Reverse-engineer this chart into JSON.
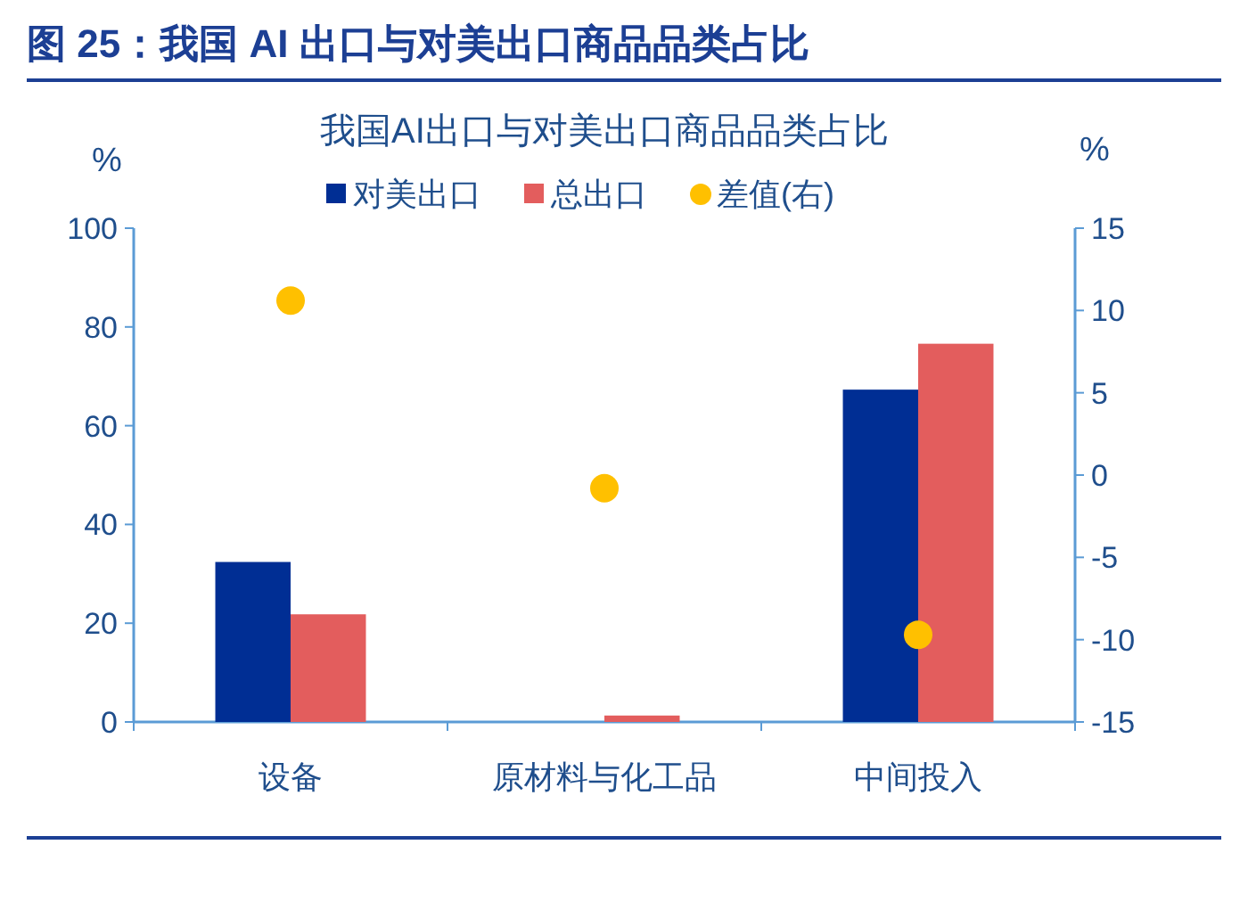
{
  "chart_data": {
    "type": "bar",
    "title": "图 25：我国 AI 出口与对美出口商品品类占比",
    "subtitle": "我国AI出口与对美出口商品品类占比",
    "ylabel": "%",
    "y2label": "%",
    "categories": [
      "设备",
      "原材料与化工品",
      "中间投入"
    ],
    "series": [
      {
        "name": "对美出口",
        "color": "#002e94",
        "values": [
          32.4,
          0,
          67.3
        ]
      },
      {
        "name": "总出口",
        "color": "#e35d5d",
        "values": [
          21.8,
          1.3,
          76.6
        ]
      },
      {
        "name": "差值(右)",
        "type": "scatter",
        "axis": "y2",
        "marker": "circle",
        "color": "#ffc000",
        "values": [
          10.6,
          -0.8,
          -9.7
        ]
      }
    ],
    "ylim": [
      0,
      100
    ],
    "yticks": [
      0,
      20,
      40,
      60,
      80,
      100
    ],
    "y2lim": [
      -15,
      15
    ],
    "y2ticks": [
      -15,
      -10,
      -5,
      0,
      5,
      10,
      15
    ],
    "legend": "top",
    "grid": false
  }
}
